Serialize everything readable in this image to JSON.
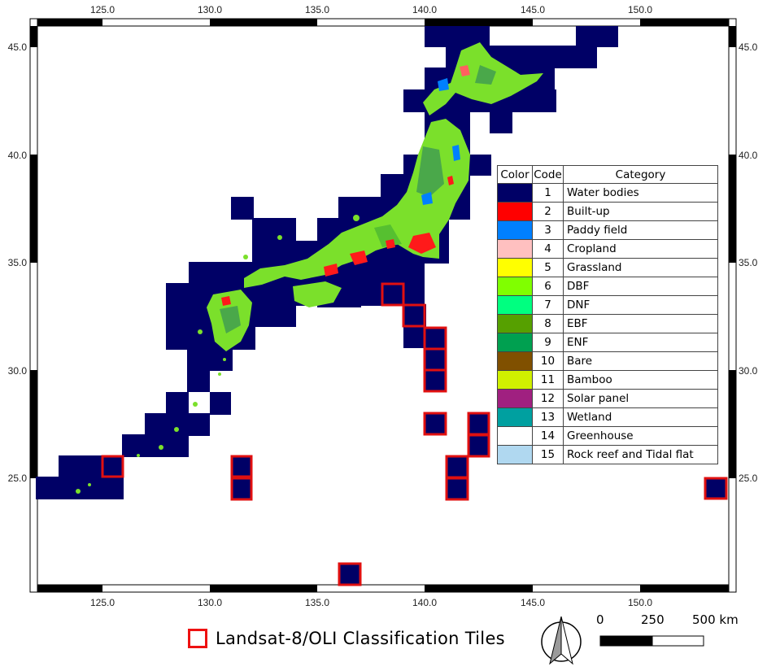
{
  "map": {
    "lon_ticks": [
      "125.0",
      "130.0",
      "135.0",
      "140.0",
      "145.0",
      "150.0"
    ],
    "lat_ticks": [
      "45.0",
      "40.0",
      "35.0",
      "30.0",
      "25.0"
    ],
    "lon_range": [
      121.7,
      153.8
    ],
    "lat_range": [
      20.0,
      46.3
    ],
    "colors": {
      "water": "#000066",
      "tile_outline": "#e01010",
      "frame": "#000000"
    },
    "landsat_tiles_highlighted": [
      {
        "lon": 125.5,
        "lat": 25.6
      },
      {
        "lon": 131.5,
        "lat": 25.6
      },
      {
        "lon": 131.5,
        "lat": 24.6
      },
      {
        "lon": 138.5,
        "lat": 33.4
      },
      {
        "lon": 139.5,
        "lat": 32.4
      },
      {
        "lon": 140.5,
        "lat": 31.4
      },
      {
        "lon": 140.5,
        "lat": 30.4
      },
      {
        "lon": 140.5,
        "lat": 29.4
      },
      {
        "lon": 140.5,
        "lat": 27.4
      },
      {
        "lon": 142.5,
        "lat": 27.4
      },
      {
        "lon": 142.5,
        "lat": 26.5
      },
      {
        "lon": 141.5,
        "lat": 25.6
      },
      {
        "lon": 141.5,
        "lat": 24.6
      },
      {
        "lon": 153.5,
        "lat": 24.6
      },
      {
        "lon": 136.5,
        "lat": 20.5
      }
    ]
  },
  "legend": {
    "headers": {
      "color": "Color",
      "code": "Code",
      "category": "Category"
    },
    "rows": [
      {
        "code": "1",
        "category": "Water bodies",
        "color": "#000066"
      },
      {
        "code": "2",
        "category": "Built-up",
        "color": "#ff0000"
      },
      {
        "code": "3",
        "category": "Paddy field",
        "color": "#0080ff"
      },
      {
        "code": "4",
        "category": "Cropland",
        "color": "#ffc0c0"
      },
      {
        "code": "5",
        "category": "Grassland",
        "color": "#ffff00"
      },
      {
        "code": "6",
        "category": "DBF",
        "color": "#80ff00"
      },
      {
        "code": "7",
        "category": "DNF",
        "color": "#00ff80"
      },
      {
        "code": "8",
        "category": "EBF",
        "color": "#56a000"
      },
      {
        "code": "9",
        "category": "ENF",
        "color": "#00a050"
      },
      {
        "code": "10",
        "category": "Bare",
        "color": "#805000"
      },
      {
        "code": "11",
        "category": "Bamboo",
        "color": "#d0f000"
      },
      {
        "code": "12",
        "category": "Solar panel",
        "color": "#a02080"
      },
      {
        "code": "13",
        "category": "Wetland",
        "color": "#00a0a0"
      },
      {
        "code": "14",
        "category": "Greenhouse",
        "color": "#ffffff"
      },
      {
        "code": "15",
        "category": "Rock reef and Tidal flat",
        "color": "#b0d8f0"
      }
    ]
  },
  "tiles_legend": {
    "label": "Landsat-8/OLI Classification Tiles",
    "color": "#e01010"
  },
  "scale_bar": {
    "labels": [
      "0",
      "250",
      "500 km"
    ]
  },
  "north_arrow": {
    "icon": "north-arrow-icon"
  }
}
